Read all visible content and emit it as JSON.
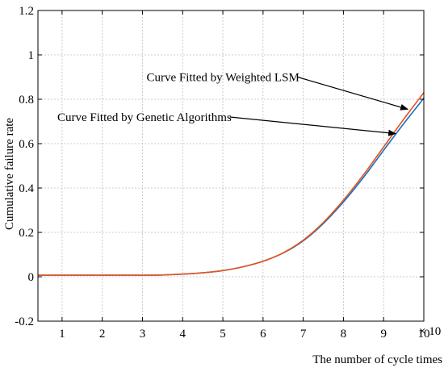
{
  "chart_data": {
    "type": "line",
    "xlabel": "The number of cycle times",
    "ylabel": "Cumulative failure rate",
    "x_multiplier": "× 10",
    "x_multiplier_exp": "5",
    "xlim": [
      0.4,
      10
    ],
    "ylim": [
      -0.2,
      1.2
    ],
    "xticks": [
      1,
      2,
      3,
      4,
      5,
      6,
      7,
      8,
      9,
      10
    ],
    "yticks": [
      -0.2,
      0,
      0.2,
      0.4,
      0.6,
      0.8,
      1,
      1.2
    ],
    "ytick_labels": [
      "-0.2",
      "0",
      "0.2",
      "0.4",
      "0.6",
      "0.8",
      "1",
      "1.2"
    ],
    "grid": true,
    "series": [
      {
        "name": "Curve Fitted by Weighted LSM",
        "color": "#e6531c",
        "x": [
          0.4,
          1,
          2,
          3,
          3.5,
          4,
          4.5,
          5,
          5.5,
          6,
          6.5,
          7,
          7.5,
          8,
          8.5,
          9,
          9.5,
          10
        ],
        "y": [
          0.007,
          0.007,
          0.007,
          0.007,
          0.008,
          0.012,
          0.018,
          0.028,
          0.045,
          0.07,
          0.108,
          0.165,
          0.245,
          0.345,
          0.46,
          0.585,
          0.71,
          0.83
        ]
      },
      {
        "name": "Curve Fitted by Genetic Algorithms",
        "color": "#1a6fbf",
        "x": [
          0.4,
          1,
          2,
          3,
          3.5,
          4,
          4.5,
          5,
          5.5,
          6,
          6.5,
          7,
          7.5,
          8,
          8.5,
          9,
          9.5,
          10
        ],
        "y": [
          0.007,
          0.007,
          0.007,
          0.007,
          0.008,
          0.012,
          0.018,
          0.028,
          0.045,
          0.07,
          0.107,
          0.162,
          0.24,
          0.337,
          0.448,
          0.57,
          0.69,
          0.805
        ]
      }
    ],
    "annotations": [
      {
        "text": "Curve Fitted by Weighted LSM",
        "text_at": [
          3.1,
          0.9
        ],
        "arrow_to": [
          9.6,
          0.755
        ]
      },
      {
        "text": "Curve Fitted by Genetic Algorithms",
        "text_at": [
          0.4,
          0.72
        ],
        "arrow_to": [
          9.3,
          0.645
        ]
      }
    ]
  }
}
